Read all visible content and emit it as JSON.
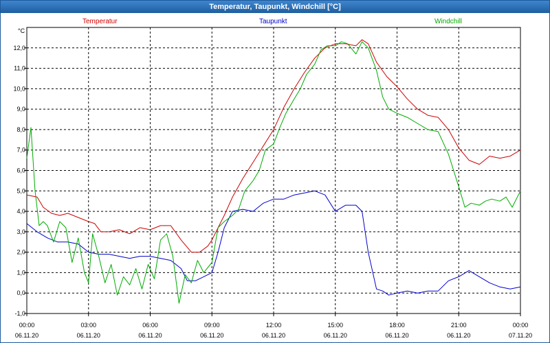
{
  "window": {
    "title": "Temperatur, Taupunkt, Windchill [°C]"
  },
  "chart_data": {
    "type": "line",
    "title": "Temperatur, Taupunkt, Windchill [°C]",
    "ylabel": "°C",
    "ylim": [
      -1.0,
      13.0
    ],
    "xlim_hours": [
      0,
      24
    ],
    "grid": true,
    "y_ticks": [
      "-1,0",
      "0,0",
      "1,0",
      "2,0",
      "3,0",
      "4,0",
      "5,0",
      "6,0",
      "7,0",
      "8,0",
      "9,0",
      "10,0",
      "11,0",
      "12,0"
    ],
    "x_ticks": [
      {
        "time": "00:00",
        "date": "06.11.20"
      },
      {
        "time": "03:00",
        "date": "06.11.20"
      },
      {
        "time": "06:00",
        "date": "06.11.20"
      },
      {
        "time": "09:00",
        "date": "06.11.20"
      },
      {
        "time": "12:00",
        "date": "06.11.20"
      },
      {
        "time": "15:00",
        "date": "06.11.20"
      },
      {
        "time": "18:00",
        "date": "06.11.20"
      },
      {
        "time": "21:00",
        "date": "06.11.20"
      },
      {
        "time": "00:00",
        "date": "07.11.20"
      }
    ],
    "series": [
      {
        "name": "Temperatur",
        "color": "#cc0000",
        "x": [
          0,
          0.5,
          0.8,
          1.2,
          1.6,
          2.0,
          2.5,
          3.0,
          3.3,
          3.6,
          4.0,
          4.5,
          5.0,
          5.5,
          6.0,
          6.5,
          7.0,
          7.5,
          8.0,
          8.4,
          8.8,
          9.0,
          9.3,
          9.6,
          10.0,
          10.5,
          11.0,
          11.5,
          12.0,
          12.5,
          13.0,
          13.5,
          14.0,
          14.5,
          15.0,
          15.5,
          16.0,
          16.3,
          16.6,
          17.0,
          17.5,
          18.0,
          18.5,
          19.0,
          19.5,
          20.0,
          20.5,
          21.0,
          21.5,
          22.0,
          22.5,
          23.0,
          23.5,
          24.0
        ],
        "values": [
          4.8,
          4.7,
          4.2,
          3.9,
          3.8,
          3.9,
          3.7,
          3.5,
          3.4,
          3.0,
          3.0,
          3.1,
          2.9,
          3.2,
          3.1,
          3.3,
          3.3,
          2.6,
          2.0,
          2.0,
          2.3,
          2.6,
          3.2,
          3.8,
          4.7,
          5.6,
          6.4,
          7.2,
          8.0,
          9.1,
          10.0,
          10.8,
          11.5,
          12.0,
          12.2,
          12.2,
          12.1,
          12.4,
          12.2,
          11.3,
          10.6,
          10.1,
          9.5,
          9.0,
          8.7,
          8.6,
          8.0,
          7.1,
          6.5,
          6.3,
          6.7,
          6.6,
          6.7,
          7.0
        ]
      },
      {
        "name": "Taupunkt",
        "color": "#0000cc",
        "x": [
          0,
          0.5,
          1.0,
          1.5,
          2.0,
          2.5,
          3.0,
          3.5,
          4.0,
          4.5,
          5.0,
          5.5,
          6.0,
          6.5,
          7.0,
          7.5,
          7.8,
          8.2,
          8.6,
          9.0,
          9.3,
          9.6,
          10.0,
          10.5,
          11.0,
          11.5,
          12.0,
          12.5,
          13.0,
          13.5,
          14.0,
          14.5,
          15.0,
          15.5,
          16.0,
          16.3,
          16.6,
          17.0,
          17.3,
          17.6,
          18.0,
          18.5,
          19.0,
          19.5,
          20.0,
          20.5,
          21.0,
          21.5,
          22.0,
          22.5,
          23.0,
          23.5,
          24.0
        ],
        "values": [
          3.4,
          3.0,
          2.7,
          2.5,
          2.5,
          2.4,
          2.0,
          1.9,
          1.9,
          1.8,
          1.7,
          1.8,
          1.8,
          1.7,
          1.6,
          1.2,
          0.6,
          0.6,
          0.8,
          1.0,
          2.0,
          3.2,
          4.0,
          4.1,
          4.0,
          4.4,
          4.6,
          4.6,
          4.8,
          4.9,
          5.0,
          4.8,
          4.0,
          4.3,
          4.3,
          4.0,
          2.0,
          0.2,
          0.1,
          -0.1,
          0.0,
          0.1,
          0.0,
          0.1,
          0.1,
          0.6,
          0.8,
          1.1,
          0.8,
          0.5,
          0.3,
          0.2,
          0.3
        ]
      },
      {
        "name": "Windchill",
        "color": "#00aa00",
        "x": [
          0,
          0.2,
          0.4,
          0.6,
          0.8,
          1.0,
          1.3,
          1.6,
          1.9,
          2.2,
          2.5,
          2.8,
          3.0,
          3.2,
          3.5,
          3.8,
          4.1,
          4.4,
          4.7,
          5.0,
          5.3,
          5.6,
          5.9,
          6.2,
          6.5,
          6.8,
          7.1,
          7.4,
          7.7,
          8.0,
          8.3,
          8.6,
          9.0,
          9.3,
          9.6,
          10.0,
          10.3,
          10.6,
          11.0,
          11.3,
          11.6,
          12.0,
          12.3,
          12.6,
          13.0,
          13.3,
          13.6,
          14.0,
          14.3,
          14.6,
          15.0,
          15.3,
          15.6,
          16.0,
          16.3,
          16.6,
          17.0,
          17.3,
          17.6,
          18.0,
          18.5,
          19.0,
          19.5,
          20.0,
          20.5,
          21.0,
          21.3,
          21.6,
          22.0,
          22.3,
          22.6,
          23.0,
          23.3,
          23.6,
          24.0
        ],
        "values": [
          6.6,
          8.1,
          5.0,
          3.3,
          3.5,
          3.3,
          2.5,
          3.5,
          3.2,
          1.5,
          2.7,
          1.0,
          0.5,
          2.9,
          1.8,
          0.5,
          1.4,
          -0.1,
          0.8,
          0.4,
          1.2,
          0.2,
          1.4,
          0.7,
          2.6,
          2.9,
          1.8,
          -0.5,
          0.9,
          0.5,
          1.6,
          1.0,
          1.5,
          3.2,
          3.5,
          3.8,
          4.1,
          5.0,
          5.5,
          6.0,
          7.0,
          7.3,
          8.1,
          8.8,
          9.5,
          10.0,
          10.7,
          11.2,
          11.9,
          12.1,
          12.1,
          12.3,
          12.2,
          11.7,
          12.3,
          12.0,
          10.9,
          9.6,
          9.0,
          8.8,
          8.6,
          8.3,
          8.0,
          7.9,
          6.8,
          5.2,
          4.2,
          4.4,
          4.3,
          4.5,
          4.6,
          4.5,
          4.7,
          4.2,
          5.0
        ]
      }
    ]
  }
}
